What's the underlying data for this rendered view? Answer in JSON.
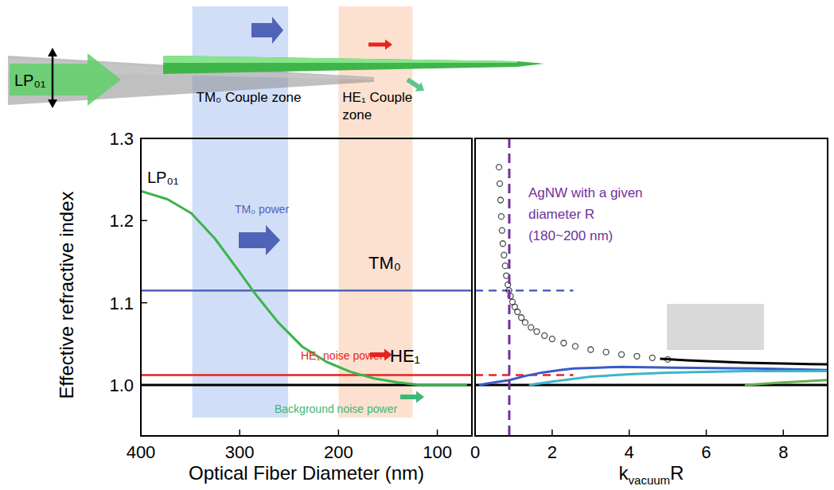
{
  "diagram": {
    "label": "LP₀₁"
  },
  "chart_data": [
    {
      "type": "line",
      "xlabel": "Optical Fiber Diameter (nm)",
      "ylabel": "Effective refractive index",
      "xlim": [
        400,
        65
      ],
      "ylim": [
        0.938,
        1.3
      ],
      "xticks": [
        400,
        300,
        200,
        100
      ],
      "yticks": [
        {
          "value": 1,
          "label": "1.0"
        },
        {
          "value": 1.1,
          "label": "1.1"
        },
        {
          "value": 1.2,
          "label": "1.2"
        },
        {
          "value": 1.3,
          "label": "1.3"
        }
      ],
      "series": [
        {
          "name": "LP₀₁",
          "color": "#3cb44b",
          "x": [
            400,
            373,
            349,
            325,
            301,
            285,
            261,
            237,
            212,
            188,
            164,
            140,
            116,
            92,
            70
          ],
          "values": [
            1.236,
            1.226,
            1.209,
            1.178,
            1.139,
            1.112,
            1.076,
            1.047,
            1.028,
            1.016,
            1.008,
            1.003,
            1.0,
            1.0,
            1.0
          ]
        }
      ],
      "hlines": [
        {
          "name": "TM₀",
          "value": 1.115,
          "color": "#4f63b8"
        },
        {
          "name": "HE₁",
          "value": 1.012,
          "color": "#e8231f"
        },
        {
          "value": 1.0,
          "color": "#000000"
        }
      ],
      "bands": [
        {
          "label": "TM₀ Couple zone",
          "range": [
            348,
            251
          ],
          "color": "#c9d8f7"
        },
        {
          "label": "HE₁ Couple zone",
          "range": [
            200,
            125
          ],
          "color": "#fcdcc8"
        }
      ],
      "annotations": [
        {
          "text": "TM₀ power",
          "color": "#4f63b8"
        },
        {
          "text": "HE₁ noise power",
          "color": "#e8231f"
        },
        {
          "text": "Background noise power",
          "color": "#3cb878"
        }
      ]
    },
    {
      "type": "scatter",
      "xlabel": [
        "k",
        "vacuum",
        "R"
      ],
      "xlim": [
        0,
        9.15
      ],
      "ylim": [
        0.938,
        1.3
      ],
      "xticks": [
        0,
        2,
        4,
        6,
        8
      ],
      "tick_labels": "x",
      "series": [
        {
          "color": "#000000",
          "type": "scatter",
          "marker": "circle",
          "x": [
            0.62,
            0.64,
            0.66,
            0.68,
            0.7,
            0.72,
            0.75,
            0.78,
            0.81,
            0.85,
            0.88,
            0.92,
            0.97,
            1.03,
            1.1,
            1.2,
            1.3,
            1.45,
            1.6,
            1.8,
            2.0,
            2.3,
            2.6,
            3.0,
            3.4,
            3.8,
            4.2,
            4.6,
            5.0
          ],
          "values": [
            1.265,
            1.245,
            1.225,
            1.205,
            1.188,
            1.172,
            1.158,
            1.145,
            1.133,
            1.122,
            1.115,
            1.108,
            1.101,
            1.095,
            1.089,
            1.082,
            1.076,
            1.07,
            1.065,
            1.06,
            1.056,
            1.051,
            1.047,
            1.043,
            1.04,
            1.037,
            1.035,
            1.033,
            1.031
          ]
        },
        {
          "color": "#000000",
          "type": "line",
          "x": [
            4.8,
            5.5,
            6.0,
            7.0,
            8.0,
            9.15
          ],
          "values": [
            1.032,
            1.03,
            1.029,
            1.027,
            1.026,
            1.025
          ]
        },
        {
          "color": "#3a5bc7",
          "type": "line",
          "x": [
            0.1,
            0.5,
            0.9,
            1.3,
            1.73,
            2.2,
            2.56,
            3.2,
            3.8,
            5.2,
            7.3,
            9.15
          ],
          "values": [
            1.0,
            1.003,
            1.006,
            1.011,
            1.015,
            1.018,
            1.02,
            1.021,
            1.022,
            1.021,
            1.02,
            1.018
          ]
        },
        {
          "color": "#3fb5c9",
          "type": "line",
          "x": [
            1.4,
            2.0,
            3.0,
            4.0,
            5.0,
            6.0,
            7.0,
            8.0,
            9.15
          ],
          "values": [
            1.0,
            1.004,
            1.01,
            1.013,
            1.015,
            1.016,
            1.017,
            1.017,
            1.017
          ]
        },
        {
          "color": "#6ab04c",
          "type": "line",
          "x": [
            7.0,
            8.0,
            9.15
          ],
          "values": [
            1.0,
            1.003,
            1.006
          ]
        }
      ],
      "hlines": [
        {
          "value": 1.115,
          "color": "#4f63b8",
          "line_style": "dashed",
          "x_end": 2.55
        },
        {
          "value": 1.012,
          "color": "#e8231f",
          "line_style": "dashed",
          "x_end": 2.55
        },
        {
          "value": 1.0,
          "color": "#000000"
        }
      ],
      "annotation": {
        "text": [
          "AgNW with a given",
          "diameter R",
          "(180~200 nm)"
        ],
        "x": 0.887,
        "color": "#7030a0",
        "line_style": "dashed"
      }
    }
  ]
}
